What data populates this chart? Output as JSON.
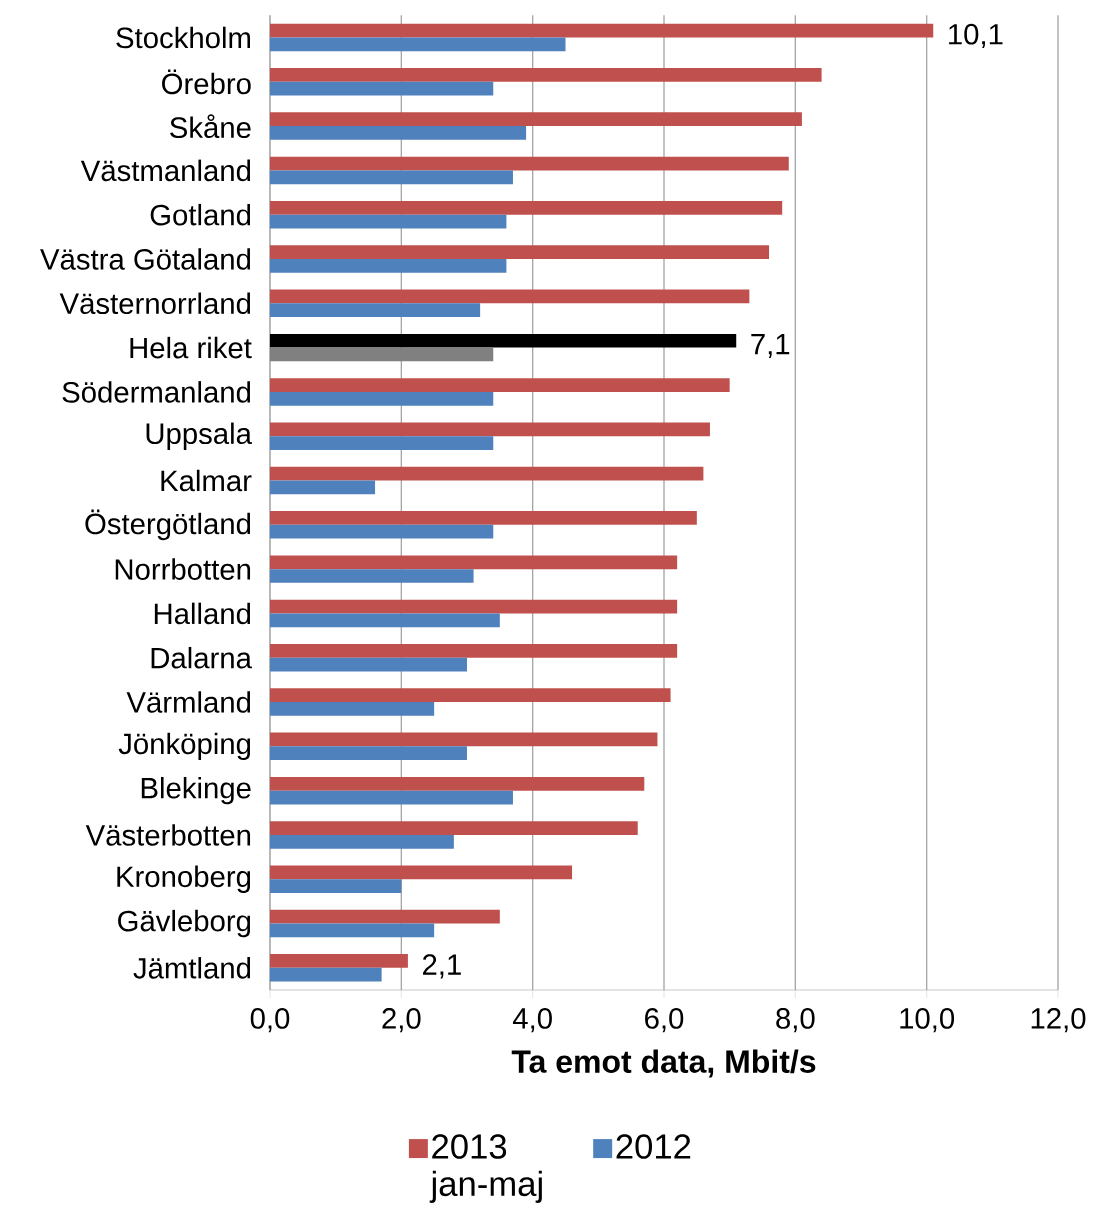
{
  "chart_data": {
    "type": "bar",
    "orientation": "horizontal",
    "xlabel": "Ta emot data, Mbit/s",
    "categories": [
      "Stockholm",
      "Örebro",
      "Skåne",
      "Västmanland",
      "Gotland",
      "Västra Götaland",
      "Västernorrland",
      "Hela riket",
      "Södermanland",
      "Uppsala",
      "Kalmar",
      "Östergötland",
      "Norrbotten",
      "Halland",
      "Dalarna",
      "Värmland",
      "Jönköping",
      "Blekinge",
      "Västerbotten",
      "Kronoberg",
      "Gävleborg",
      "Jämtland"
    ],
    "series": [
      {
        "name": "2013 jan-maj",
        "color": "#c0504d",
        "colors": [
          "#c0504d",
          "#c0504d",
          "#c0504d",
          "#c0504d",
          "#c0504d",
          "#c0504d",
          "#c0504d",
          "#000000",
          "#c0504d",
          "#c0504d",
          "#c0504d",
          "#c0504d",
          "#c0504d",
          "#c0504d",
          "#c0504d",
          "#c0504d",
          "#c0504d",
          "#c0504d",
          "#c0504d",
          "#c0504d",
          "#c0504d",
          "#c0504d"
        ],
        "values": [
          10.1,
          8.4,
          8.1,
          7.9,
          7.8,
          7.6,
          7.3,
          7.1,
          7.0,
          6.7,
          6.6,
          6.5,
          6.2,
          6.2,
          6.2,
          6.1,
          5.9,
          5.7,
          5.6,
          4.6,
          3.5,
          2.1
        ],
        "value_labels": [
          "10,1",
          null,
          null,
          null,
          null,
          null,
          null,
          "7,1",
          null,
          null,
          null,
          null,
          null,
          null,
          null,
          null,
          null,
          null,
          null,
          null,
          null,
          "2,1"
        ]
      },
      {
        "name": "2012",
        "color": "#4f81bd",
        "colors": [
          "#4f81bd",
          "#4f81bd",
          "#4f81bd",
          "#4f81bd",
          "#4f81bd",
          "#4f81bd",
          "#4f81bd",
          "#808080",
          "#4f81bd",
          "#4f81bd",
          "#4f81bd",
          "#4f81bd",
          "#4f81bd",
          "#4f81bd",
          "#4f81bd",
          "#4f81bd",
          "#4f81bd",
          "#4f81bd",
          "#4f81bd",
          "#4f81bd",
          "#4f81bd",
          "#4f81bd"
        ],
        "values": [
          4.5,
          3.4,
          3.9,
          3.7,
          3.6,
          3.6,
          3.2,
          3.4,
          3.4,
          3.4,
          1.6,
          3.4,
          3.1,
          3.5,
          3.0,
          2.5,
          3.0,
          3.7,
          2.8,
          2.0,
          2.5,
          1.7
        ]
      }
    ],
    "xlim": [
      0,
      12
    ],
    "xticks": [
      {
        "value": 0,
        "label": "0,0"
      },
      {
        "value": 2,
        "label": "2,0"
      },
      {
        "value": 4,
        "label": "4,0"
      },
      {
        "value": 6,
        "label": "6,0"
      },
      {
        "value": 8,
        "label": "8,0"
      },
      {
        "value": 10,
        "label": "10,0"
      },
      {
        "value": 12,
        "label": "12,0"
      }
    ],
    "grid": "x",
    "legend": "bottom"
  }
}
